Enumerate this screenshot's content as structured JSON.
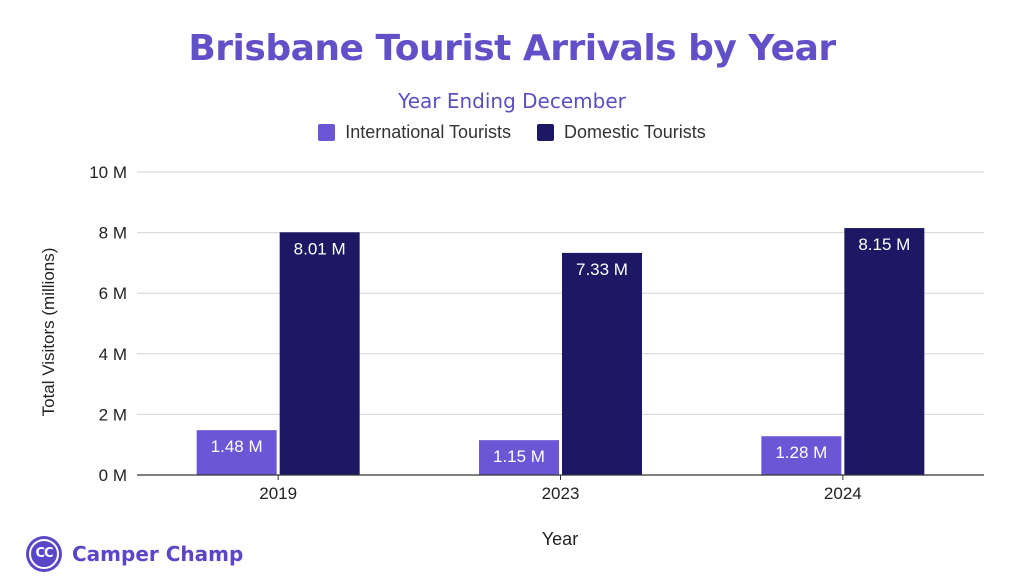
{
  "chart_data": {
    "type": "bar",
    "title": "Brisbane Tourist Arrivals by Year",
    "subtitle": "Year Ending December",
    "xlabel": "Year",
    "ylabel": "Total Visitors (millions)",
    "categories": [
      "2019",
      "2023",
      "2024"
    ],
    "series": [
      {
        "name": "International Tourists",
        "values": [
          1.48,
          1.15,
          1.28
        ],
        "labels": [
          "1.48 M",
          "1.15 M",
          "1.28 M"
        ],
        "color": "#6b56d6"
      },
      {
        "name": "Domestic Tourists",
        "values": [
          8.01,
          7.33,
          8.15
        ],
        "labels": [
          "8.01 M",
          "7.33 M",
          "8.15 M"
        ],
        "color": "#1c1863"
      }
    ],
    "ylim": [
      0,
      10
    ],
    "yticks": [
      0,
      2,
      4,
      6,
      8,
      10
    ],
    "ytick_labels": [
      "0 M",
      "2 M",
      "4 M",
      "6 M",
      "8 M",
      "10 M"
    ],
    "grid": true,
    "legend_position": "top-center"
  },
  "brand": {
    "logo_text": "CC",
    "name": "Camper Champ",
    "color": "#5a47c8"
  }
}
